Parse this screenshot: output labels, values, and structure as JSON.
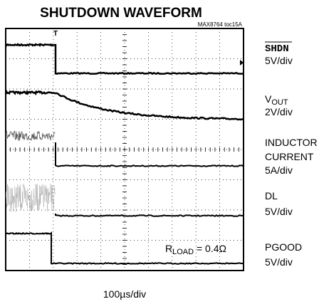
{
  "title": "SHUTDOWN WAVEFORM",
  "figure_id": "MAX8764 toc15A",
  "x_scale": "100µs/div",
  "annotation": {
    "main": "R",
    "sub": "LOAD",
    "rest": " = 0.4Ω"
  },
  "channels": [
    {
      "name": "SHDN",
      "scale": "5V/div"
    },
    {
      "name": "V",
      "sub": "OUT",
      "scale": "2V/div"
    },
    {
      "name": "INDUCTOR",
      "name2": "CURRENT",
      "scale": "5A/div"
    },
    {
      "name": "DL",
      "scale": "5V/div"
    },
    {
      "name": "PGOOD",
      "scale": "5V/div"
    }
  ]
}
